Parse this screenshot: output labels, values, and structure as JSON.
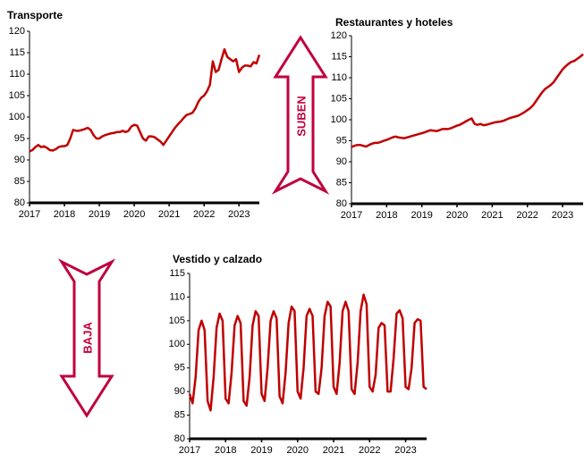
{
  "chart_data": [
    {
      "type": "line",
      "title": "Transporte",
      "categories": [
        "2017",
        null,
        null,
        null,
        null,
        null,
        null,
        null,
        null,
        null,
        null,
        null,
        "2018",
        null,
        null,
        null,
        null,
        null,
        null,
        null,
        null,
        null,
        null,
        null,
        "2019",
        null,
        null,
        null,
        null,
        null,
        null,
        null,
        null,
        null,
        null,
        null,
        "2020",
        null,
        null,
        null,
        null,
        null,
        null,
        null,
        null,
        null,
        null,
        null,
        "2021",
        null,
        null,
        null,
        null,
        null,
        null,
        null,
        null,
        null,
        null,
        null,
        "2022",
        null,
        null,
        null,
        null,
        null,
        null,
        null,
        null,
        null,
        null,
        null,
        "2023",
        null,
        null,
        null,
        null,
        null,
        null,
        null
      ],
      "series": [
        {
          "color": "#c00000",
          "values": [
            92,
            92.3,
            93,
            93.5,
            93,
            93.2,
            92.8,
            92.3,
            92.2,
            92.5,
            93,
            93.2,
            93.2,
            93.5,
            95,
            97,
            96.8,
            96.8,
            97,
            97.2,
            97.5,
            97,
            95.8,
            95,
            95,
            95.5,
            95.8,
            96,
            96.2,
            96.3,
            96.5,
            96.5,
            96.8,
            96.5,
            96.8,
            97.8,
            98.2,
            98,
            96.5,
            95,
            94.5,
            95.5,
            95.5,
            95.3,
            94.8,
            94.3,
            93.5,
            94.5,
            95.5,
            96.5,
            97.5,
            98.3,
            99,
            99.8,
            100.5,
            100.7,
            101,
            102,
            103.5,
            104.5,
            105,
            106,
            107.5,
            113,
            110.5,
            111,
            113.5,
            115.8,
            114,
            113.5,
            113,
            113.5,
            110.5,
            111.5,
            112,
            112,
            111.8,
            112.8,
            112.5,
            114.5
          ]
        }
      ],
      "ylim": [
        80,
        120
      ],
      "yticks": [
        80,
        85,
        90,
        95,
        100,
        105,
        110,
        115,
        120
      ]
    },
    {
      "type": "line",
      "title": "Restaurantes y hoteles",
      "categories": [
        "2017",
        null,
        null,
        null,
        null,
        null,
        null,
        null,
        null,
        null,
        null,
        null,
        "2018",
        null,
        null,
        null,
        null,
        null,
        null,
        null,
        null,
        null,
        null,
        null,
        "2019",
        null,
        null,
        null,
        null,
        null,
        null,
        null,
        null,
        null,
        null,
        null,
        "2020",
        null,
        null,
        null,
        null,
        null,
        null,
        null,
        null,
        null,
        null,
        null,
        "2021",
        null,
        null,
        null,
        null,
        null,
        null,
        null,
        null,
        null,
        null,
        null,
        "2022",
        null,
        null,
        null,
        null,
        null,
        null,
        null,
        null,
        null,
        null,
        null,
        "2023",
        null,
        null,
        null,
        null,
        null,
        null,
        null
      ],
      "series": [
        {
          "color": "#c00000",
          "values": [
            93.5,
            93.8,
            94,
            94,
            93.8,
            93.6,
            94,
            94.3,
            94.5,
            94.5,
            94.7,
            95,
            95.2,
            95.5,
            95.8,
            96,
            95.8,
            95.7,
            95.6,
            95.8,
            96,
            96.2,
            96.4,
            96.6,
            96.8,
            97,
            97.3,
            97.5,
            97.4,
            97.3,
            97.5,
            97.8,
            97.8,
            97.8,
            98,
            98.3,
            98.6,
            98.8,
            99.2,
            99.6,
            100,
            100.3,
            99,
            98.8,
            99,
            98.7,
            98.8,
            99,
            99.2,
            99.4,
            99.5,
            99.6,
            99.8,
            100.1,
            100.4,
            100.6,
            100.8,
            101,
            101.4,
            101.8,
            102.3,
            102.8,
            103.5,
            104.5,
            105.5,
            106.5,
            107.3,
            107.8,
            108.3,
            109,
            110,
            111,
            112,
            112.7,
            113.3,
            113.8,
            114,
            114.5,
            115,
            115.6
          ]
        }
      ],
      "ylim": [
        80,
        120
      ],
      "yticks": [
        80,
        85,
        90,
        95,
        100,
        105,
        110,
        115,
        120
      ]
    },
    {
      "type": "line",
      "title": "Vestido y calzado",
      "categories": [
        "2017",
        null,
        null,
        null,
        null,
        null,
        null,
        null,
        null,
        null,
        null,
        null,
        "2018",
        null,
        null,
        null,
        null,
        null,
        null,
        null,
        null,
        null,
        null,
        null,
        "2019",
        null,
        null,
        null,
        null,
        null,
        null,
        null,
        null,
        null,
        null,
        null,
        "2020",
        null,
        null,
        null,
        null,
        null,
        null,
        null,
        null,
        null,
        null,
        null,
        "2021",
        null,
        null,
        null,
        null,
        null,
        null,
        null,
        null,
        null,
        null,
        null,
        "2022",
        null,
        null,
        null,
        null,
        null,
        null,
        null,
        null,
        null,
        null,
        null,
        "2023",
        null,
        null,
        null,
        null,
        null,
        null,
        null
      ],
      "series": [
        {
          "color": "#c00000",
          "values": [
            89.5,
            87.5,
            93,
            103,
            105,
            103,
            88,
            86,
            93,
            103.5,
            106.5,
            105,
            88.5,
            87.5,
            94,
            104,
            106,
            104.5,
            88,
            87,
            93,
            104,
            107,
            106,
            89.5,
            88,
            95,
            105,
            107,
            105.5,
            89,
            87.5,
            94,
            104.5,
            108,
            107,
            90,
            88.5,
            95,
            106,
            107.5,
            106,
            90,
            89.5,
            95,
            106,
            109,
            108,
            91,
            89.5,
            96,
            107,
            109,
            107,
            90.5,
            89.5,
            96,
            107,
            110.5,
            108.5,
            91,
            90,
            93.5,
            103.5,
            104.5,
            104,
            90,
            90,
            97,
            106.5,
            107.2,
            105.5,
            91,
            90.5,
            95,
            104.5,
            105.3,
            105,
            91,
            90.5
          ]
        }
      ],
      "ylim": [
        80,
        115
      ],
      "yticks": [
        80,
        85,
        90,
        95,
        100,
        105,
        110,
        115
      ]
    }
  ],
  "arrows": [
    {
      "label": "SUBEN"
    },
    {
      "label": "BAJA"
    }
  ]
}
